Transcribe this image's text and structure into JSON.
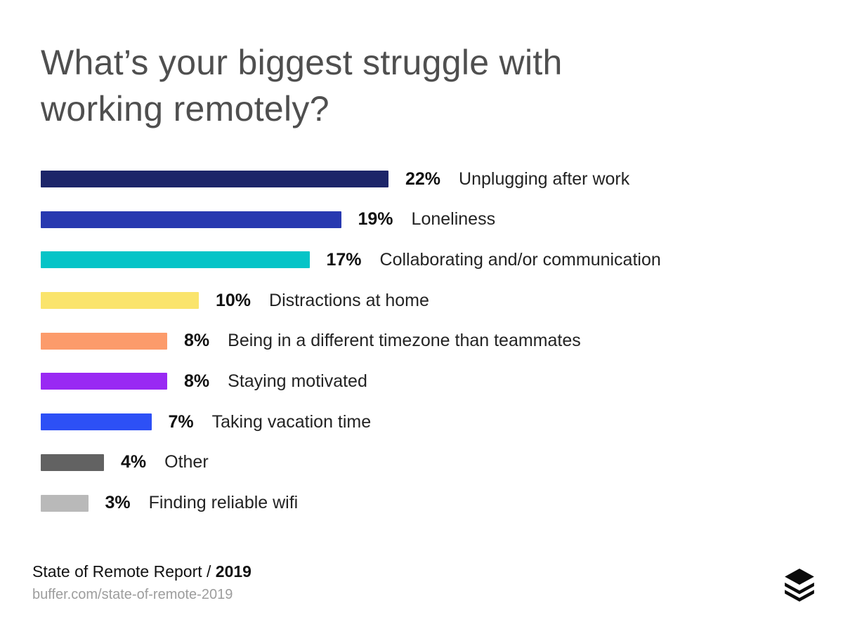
{
  "title": {
    "line1": "What’s your biggest struggle with",
    "line2": "working remotely?"
  },
  "chart_data": {
    "type": "bar",
    "orientation": "horizontal",
    "title": "What’s your biggest struggle with working remotely?",
    "unit": "%",
    "categories": [
      "Unplugging after work",
      "Loneliness",
      "Collaborating and/or communication",
      "Distractions at home",
      "Being in a different timezone than teammates",
      "Staying motivated",
      "Taking vacation time",
      "Other",
      "Finding reliable wifi"
    ],
    "values": [
      22,
      19,
      17,
      10,
      8,
      8,
      7,
      4,
      3
    ],
    "value_labels": [
      "22%",
      "19%",
      "17%",
      "10%",
      "8%",
      "8%",
      "7%",
      "4%",
      "3%"
    ],
    "colors": [
      "#1C2569",
      "#2839B0",
      "#06C4C7",
      "#FAE46C",
      "#FC9B6B",
      "#9929F3",
      "#2D50F6",
      "#626262",
      "#B9B9B9"
    ],
    "xlim": [
      0,
      22
    ],
    "grid": false,
    "legend": false
  },
  "footer": {
    "report_label": "State of Remote Report / ",
    "report_year": "2019",
    "url": "buffer.com/state-of-remote-2019"
  },
  "logo": {
    "name": "buffer-logo",
    "color": "#0B0B0B"
  }
}
